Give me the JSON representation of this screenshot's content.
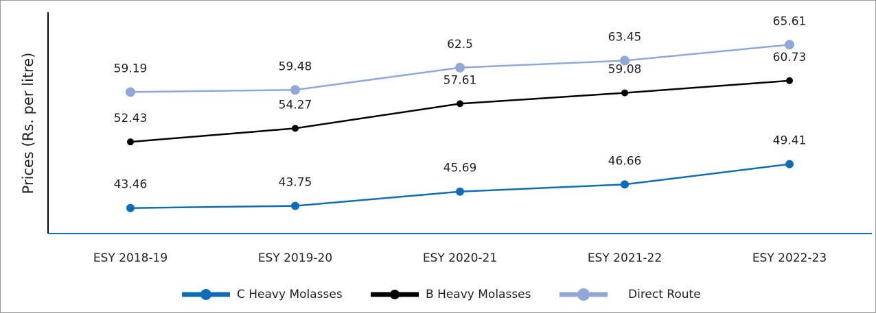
{
  "chart_data": {
    "type": "line",
    "y_label": "Prices (Rs. per litre)",
    "categories": [
      "ESY 2018-19",
      "ESY 2019-20",
      "ESY 2020-21",
      "ESY 2021-22",
      "ESY 2022-23"
    ],
    "series": [
      {
        "name": "C Heavy Molasses",
        "color": "#0e6db6",
        "values": [
          43.46,
          43.75,
          45.69,
          46.66,
          49.41
        ]
      },
      {
        "name": "B Heavy Molasses",
        "color": "#000000",
        "values": [
          52.43,
          54.27,
          57.61,
          59.08,
          60.73
        ]
      },
      {
        "name": "Direct Route",
        "color": "#90a8d8",
        "values": [
          59.19,
          59.48,
          62.5,
          63.45,
          65.61
        ]
      }
    ],
    "ylim": [
      40,
      70
    ],
    "legend": "bottom"
  }
}
